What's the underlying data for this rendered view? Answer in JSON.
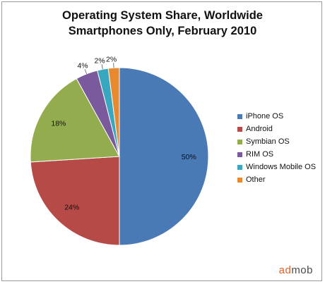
{
  "chart_data": {
    "type": "pie",
    "title": "Operating System Share, Worldwide",
    "subtitle": "Smartphones Only, February 2010",
    "categories": [
      "iPhone OS",
      "Android",
      "Symbian OS",
      "RIM OS",
      "Windows Mobile OS",
      "Other"
    ],
    "values": [
      50,
      24,
      18,
      4,
      2,
      2
    ],
    "value_labels": [
      "50%",
      "24%",
      "18%",
      "4%",
      "2%",
      "2%"
    ],
    "colors": [
      "#4a7ab5",
      "#b54a46",
      "#93ad4e",
      "#7a5a9c",
      "#3aa7c1",
      "#e7892e"
    ],
    "legend_position": "right",
    "start_angle_deg": 0,
    "direction": "clockwise"
  },
  "branding": {
    "part1": "ad",
    "part2": "mob"
  }
}
